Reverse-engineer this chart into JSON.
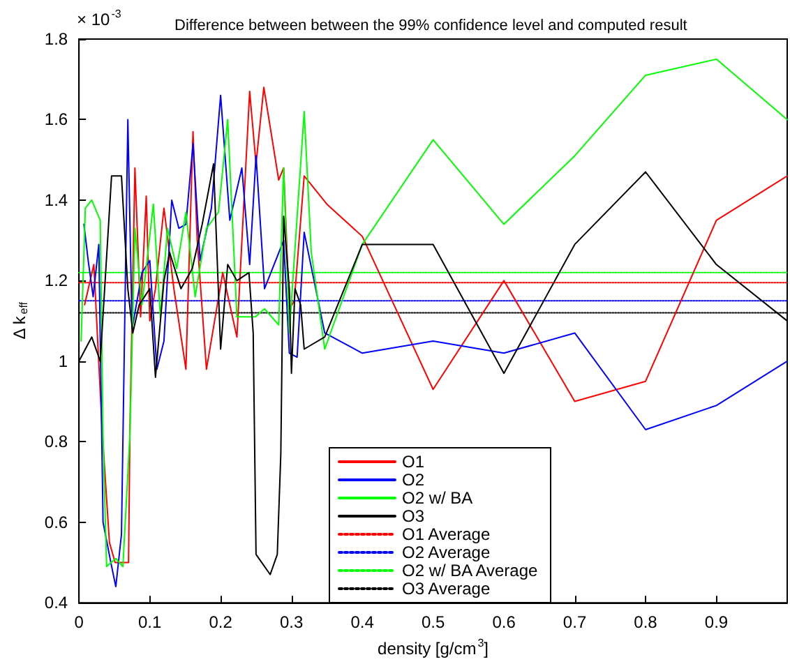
{
  "chart_data": {
    "type": "line",
    "title": "Difference between between the 99% confidence level and computed result",
    "xlabel": "density [g/cm$^{3}$]",
    "ylabel": "Δ k$_{eff}$",
    "annotations": [
      "× 10$^{-3}$"
    ],
    "xlim": [
      0,
      1
    ],
    "xticks": [
      0,
      0.1,
      0.2,
      0.3,
      0.4,
      0.5,
      0.6,
      0.7,
      0.8,
      0.9
    ],
    "ylim": [
      0.4,
      1.8
    ],
    "yticks": [
      0.4,
      0.6,
      0.8,
      1,
      1.2,
      1.4,
      1.6,
      1.8
    ],
    "grid": false,
    "legend": "bottom",
    "marker": "none",
    "series": [
      {
        "name": "O1",
        "color": "#ff0000",
        "line_style": "solid",
        "x": [
          0.008,
          0.021,
          0.033,
          0.043,
          0.051,
          0.06,
          0.07,
          0.072,
          0.079,
          0.087,
          0.095,
          0.1,
          0.108,
          0.12,
          0.134,
          0.151,
          0.161,
          0.167,
          0.18,
          0.203,
          0.223,
          0.241,
          0.25,
          0.261,
          0.282,
          0.289,
          0.297,
          0.304,
          0.318,
          0.35,
          0.4,
          0.5,
          0.6,
          0.7,
          0.8,
          0.9,
          1.0
        ],
        "values": [
          1.14,
          1.24,
          0.82,
          0.55,
          0.5,
          0.5,
          0.5,
          0.84,
          1.48,
          1.11,
          1.41,
          1.1,
          1.18,
          1.38,
          1.18,
          0.98,
          1.57,
          1.3,
          0.98,
          1.22,
          1.06,
          1.67,
          1.49,
          1.68,
          1.45,
          1.48,
          1.13,
          1.15,
          1.46,
          1.39,
          1.31,
          0.93,
          1.2,
          0.9,
          0.95,
          1.35,
          1.46
        ]
      },
      {
        "name": "O2",
        "color": "#0000ff",
        "line_style": "solid",
        "x": [
          0.007,
          0.013,
          0.02,
          0.028,
          0.034,
          0.045,
          0.052,
          0.06,
          0.069,
          0.075,
          0.089,
          0.1,
          0.11,
          0.12,
          0.131,
          0.141,
          0.151,
          0.161,
          0.171,
          0.187,
          0.2,
          0.213,
          0.23,
          0.241,
          0.25,
          0.262,
          0.289,
          0.297,
          0.308,
          0.318,
          0.347,
          0.4,
          0.5,
          0.6,
          0.7,
          0.8,
          0.9,
          1.0
        ],
        "values": [
          1.34,
          1.25,
          1.16,
          1.29,
          0.6,
          0.5,
          0.44,
          0.57,
          1.6,
          1.08,
          1.22,
          1.25,
          0.98,
          1.05,
          1.4,
          1.33,
          1.34,
          1.54,
          1.25,
          1.38,
          1.66,
          1.35,
          1.48,
          1.24,
          1.51,
          1.18,
          1.3,
          1.02,
          1.01,
          1.32,
          1.07,
          1.02,
          1.05,
          1.02,
          1.07,
          0.83,
          0.89,
          1.0
        ]
      },
      {
        "name": "O2 w/ BA",
        "color": "#00ff00",
        "line_style": "solid",
        "x": [
          0.003,
          0.009,
          0.018,
          0.03,
          0.034,
          0.039,
          0.052,
          0.062,
          0.072,
          0.079,
          0.089,
          0.105,
          0.115,
          0.125,
          0.138,
          0.151,
          0.164,
          0.18,
          0.197,
          0.21,
          0.223,
          0.249,
          0.262,
          0.282,
          0.289,
          0.297,
          0.318,
          0.328,
          0.347,
          0.4,
          0.5,
          0.6,
          0.7,
          0.8,
          0.9,
          1.0
        ],
        "values": [
          1.05,
          1.38,
          1.4,
          1.35,
          0.81,
          0.49,
          0.51,
          0.49,
          0.82,
          1.33,
          1.14,
          1.39,
          1.11,
          1.33,
          1.23,
          1.37,
          1.16,
          1.33,
          1.37,
          1.6,
          1.11,
          1.11,
          1.13,
          1.09,
          1.48,
          1.07,
          1.62,
          1.27,
          1.03,
          1.29,
          1.55,
          1.34,
          1.51,
          1.71,
          1.75,
          1.6
        ]
      },
      {
        "name": "O3",
        "color": "#000000",
        "line_style": "solid",
        "x": [
          0,
          0.018,
          0.03,
          0.046,
          0.06,
          0.069,
          0.076,
          0.085,
          0.1,
          0.108,
          0.12,
          0.128,
          0.144,
          0.16,
          0.174,
          0.19,
          0.2,
          0.21,
          0.223,
          0.24,
          0.246,
          0.25,
          0.27,
          0.28,
          0.285,
          0.289,
          0.297,
          0.3,
          0.305,
          0.313,
          0.318,
          0.347,
          0.4,
          0.5,
          0.6,
          0.7,
          0.8,
          0.9,
          1.0
        ],
        "values": [
          1.0,
          1.06,
          1.0,
          1.46,
          1.46,
          1.18,
          1.07,
          1.14,
          1.18,
          0.96,
          1.2,
          1.27,
          1.18,
          1.23,
          1.34,
          1.49,
          1.03,
          1.24,
          1.2,
          1.22,
          1.07,
          0.52,
          0.47,
          0.52,
          0.77,
          1.36,
          1.18,
          0.97,
          1.18,
          1.14,
          1.03,
          1.06,
          1.29,
          1.29,
          0.97,
          1.29,
          1.47,
          1.24,
          1.1
        ]
      },
      {
        "name": "O1 Average",
        "color": "#ff0000",
        "line_style": "dotted",
        "x": [
          0,
          1
        ],
        "values": [
          1.195,
          1.195
        ]
      },
      {
        "name": "O2 Average",
        "color": "#0000ff",
        "line_style": "dotted",
        "x": [
          0,
          1
        ],
        "values": [
          1.15,
          1.15
        ]
      },
      {
        "name": "O2 w/ BA Average",
        "color": "#00ff00",
        "line_style": "dotted",
        "x": [
          0,
          1
        ],
        "values": [
          1.22,
          1.22
        ]
      },
      {
        "name": "O3 Average",
        "color": "#000000",
        "line_style": "dotted",
        "x": [
          0,
          1
        ],
        "values": [
          1.12,
          1.12
        ]
      }
    ]
  }
}
